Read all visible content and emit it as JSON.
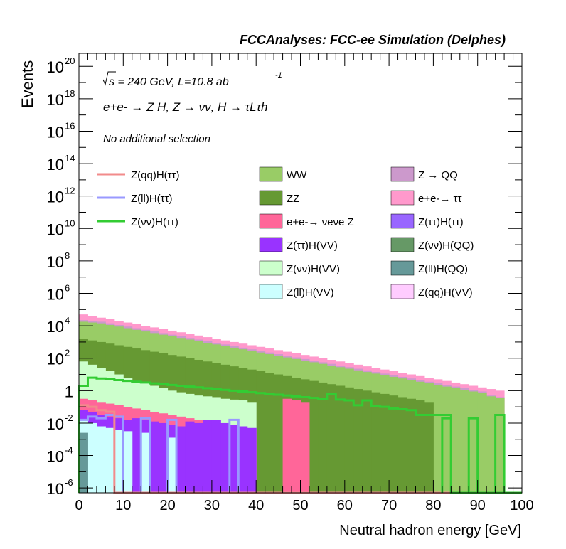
{
  "chart_data": {
    "type": "area",
    "title": "FCCAnalyses: FCC-ee Simulation (Delphes)",
    "xlabel": "Neutral hadron energy [GeV]",
    "ylabel": "Events",
    "xlim": [
      0,
      100
    ],
    "ylim_log10": [
      -6.3,
      20.8
    ],
    "y_scale": "log",
    "x_ticks": [
      "0",
      "10",
      "20",
      "30",
      "40",
      "50",
      "60",
      "70",
      "80",
      "90",
      "100"
    ],
    "y_ticks": [
      {
        "base": "10",
        "exp": "20",
        "v": 20
      },
      {
        "base": "10",
        "exp": "18",
        "v": 18
      },
      {
        "base": "10",
        "exp": "16",
        "v": 16
      },
      {
        "base": "10",
        "exp": "14",
        "v": 14
      },
      {
        "base": "10",
        "exp": "12",
        "v": 12
      },
      {
        "base": "10",
        "exp": "10",
        "v": 10
      },
      {
        "base": "10",
        "exp": "8",
        "v": 8
      },
      {
        "base": "10",
        "exp": "6",
        "v": 6
      },
      {
        "base": "10",
        "exp": "4",
        "v": 4
      },
      {
        "base": "10",
        "exp": "2",
        "v": 2
      },
      {
        "base": "1",
        "exp": "",
        "v": 0
      },
      {
        "base": "10",
        "exp": "-2",
        "v": -2
      },
      {
        "base": "10",
        "exp": "-4",
        "v": -4
      },
      {
        "base": "10",
        "exp": "-6",
        "v": -6
      }
    ],
    "annotations": {
      "energy": "s = 240 GeV, L=10.8 ab",
      "lumi_exp": "-1",
      "process": "e+e- → Z H, Z → νν, H → τLτh",
      "selection": "No additional selection"
    },
    "x_edges": [
      0,
      2,
      4,
      6,
      8,
      10,
      12,
      14,
      16,
      18,
      20,
      22,
      24,
      26,
      28,
      30,
      32,
      34,
      36,
      38,
      40,
      42,
      44,
      46,
      48,
      50,
      52,
      54,
      56,
      58,
      60,
      62,
      64,
      66,
      68,
      70,
      72,
      74,
      76,
      78,
      80,
      82,
      84,
      86,
      88,
      90,
      92,
      94,
      96,
      98,
      100
    ],
    "stack_top_log10": {
      "ee_tautau": [
        4.7,
        4.6,
        4.5,
        4.4,
        4.3,
        4.2,
        4.1,
        4.0,
        3.9,
        3.8,
        3.7,
        3.6,
        3.5,
        3.4,
        3.3,
        3.2,
        3.1,
        3.0,
        2.9,
        2.8,
        2.7,
        2.6,
        2.5,
        2.4,
        2.3,
        2.2,
        2.1,
        2.0,
        1.9,
        1.8,
        1.7,
        1.6,
        1.5,
        1.4,
        1.3,
        1.2,
        1.1,
        1.0,
        0.9,
        0.8,
        0.7,
        0.6,
        0.5,
        0.4,
        0.3,
        0.2,
        0.1,
        0.0,
        -6.3,
        -6.3
      ],
      "Z_QQ": [
        4.35,
        4.3,
        4.25,
        4.15,
        4.05,
        3.95,
        3.85,
        3.75,
        3.65,
        3.55,
        3.45,
        3.35,
        3.25,
        3.15,
        3.05,
        2.95,
        2.85,
        2.75,
        2.65,
        2.55,
        2.45,
        2.35,
        2.25,
        2.15,
        2.05,
        1.95,
        1.85,
        1.75,
        1.65,
        1.55,
        1.45,
        1.35,
        1.25,
        1.15,
        1.05,
        0.95,
        0.85,
        0.75,
        0.65,
        0.55,
        0.45,
        0.35,
        0.25,
        0.15,
        0.05,
        -0.05,
        -0.3,
        -0.4,
        -6.3,
        -6.3
      ],
      "WW": [
        4.25,
        4.2,
        4.15,
        4.05,
        3.95,
        3.85,
        3.75,
        3.65,
        3.55,
        3.45,
        3.35,
        3.25,
        3.15,
        3.05,
        2.95,
        2.85,
        2.75,
        2.65,
        2.55,
        2.45,
        2.35,
        2.25,
        2.15,
        2.05,
        1.95,
        1.85,
        1.75,
        1.65,
        1.55,
        1.45,
        1.35,
        1.25,
        1.15,
        1.05,
        0.95,
        0.85,
        0.75,
        0.65,
        0.55,
        0.45,
        0.35,
        0.25,
        0.15,
        0.05,
        -0.05,
        -0.15,
        -0.35,
        -0.45,
        -6.3,
        -6.3
      ],
      "ZZ": [
        3.2,
        3.1,
        3.0,
        2.9,
        2.8,
        2.7,
        2.6,
        2.5,
        2.4,
        2.3,
        2.2,
        2.1,
        2.0,
        1.9,
        1.8,
        1.7,
        1.6,
        1.5,
        1.4,
        1.3,
        1.2,
        1.1,
        1.0,
        0.9,
        0.8,
        0.7,
        0.6,
        0.5,
        0.4,
        0.3,
        0.2,
        0.1,
        0.0,
        -0.1,
        -0.2,
        -0.3,
        -0.4,
        -0.5,
        -0.6,
        -0.7,
        -6.3,
        -6.3,
        -6.3,
        -6.3,
        -6.3,
        -6.3,
        -6.3,
        -6.3,
        -6.3,
        -6.3
      ],
      "Z_vv_H_VV": [
        1.8,
        1.6,
        1.4,
        1.2,
        1.0,
        0.8,
        0.6,
        0.45,
        0.3,
        0.15,
        0.0,
        -0.1,
        -0.2,
        -0.3,
        -0.35,
        -0.4,
        -0.5,
        -0.55,
        -0.6,
        -0.7,
        -6.3,
        -6.3,
        -6.3,
        -6.3,
        -6.3,
        -6.3,
        -6.3,
        -6.3,
        -6.3,
        -6.3,
        -6.3,
        -6.3,
        -6.3,
        -6.3,
        -6.3,
        -6.3,
        -6.3,
        -6.3,
        -6.3,
        -6.3,
        -6.3,
        -6.3,
        -6.3,
        -6.3,
        -6.3,
        -6.3,
        -6.3,
        -6.3,
        -6.3,
        -6.3
      ],
      "ee_vv_Z": [
        -0.5,
        -0.6,
        -0.7,
        -0.8,
        -0.9,
        -1.0,
        -1.1,
        -1.2,
        -1.3,
        -1.4,
        -1.5,
        -1.6,
        -1.7,
        -1.8,
        -1.9,
        -2.0,
        -2.1,
        -2.2,
        -2.3,
        -2.4,
        -6.3,
        -6.3,
        -6.3,
        -0.5,
        -0.6,
        -0.7,
        -6.3,
        -6.3,
        -6.3,
        -6.3,
        -6.3,
        -6.3,
        -6.3,
        -6.3,
        -6.3,
        -6.3,
        -6.3,
        -6.3,
        -6.3,
        -6.3,
        -6.3,
        -6.3,
        -6.3,
        -6.3,
        -6.3,
        -6.3,
        -6.3,
        -6.3,
        -6.3,
        -6.3
      ],
      "Z_tautau_H_VV": [
        -1.2,
        -1.3,
        -1.5,
        -1.6,
        -1.7,
        -1.8,
        -1.7,
        -1.8,
        -1.9,
        -2.0,
        -2.1,
        -2.2,
        -1.9,
        -2.0,
        -1.8,
        -1.8,
        -2.0,
        -2.1,
        -2.2,
        -2.3,
        -6.3,
        -6.3,
        -6.3,
        -6.3,
        -6.3,
        -6.3,
        -6.3,
        -6.3,
        -6.3,
        -6.3,
        -6.3,
        -6.3,
        -6.3,
        -6.3,
        -6.3,
        -6.3,
        -6.3,
        -6.3,
        -6.3,
        -6.3,
        -6.3,
        -6.3,
        -6.3,
        -6.3,
        -6.3,
        -6.3,
        -6.3,
        -6.3,
        -6.3,
        -6.3
      ],
      "Z_ll_H_VV": [
        -1.8,
        -2.0,
        -2.2,
        -2.3,
        -2.4,
        -2.5,
        -6.3,
        -2.6,
        -6.3,
        -6.3,
        -2.9,
        -6.3,
        -6.3,
        -6.3,
        -6.3,
        -6.3,
        -6.3,
        -6.3,
        -6.3,
        -6.3,
        -6.3,
        -6.3,
        -6.3,
        -6.3,
        -6.3,
        -6.3,
        -6.3,
        -6.3,
        -6.3,
        -6.3,
        -6.3,
        -6.3,
        -6.3,
        -6.3,
        -6.3,
        -6.3,
        -6.3,
        -6.3,
        -6.3,
        -6.3,
        -6.3,
        -6.3,
        -6.3,
        -6.3,
        -6.3,
        -6.3,
        -6.3,
        -6.3,
        -6.3,
        -6.3
      ],
      "Z_ll_H_QQ": [
        -2.6,
        -6.3,
        -6.3,
        -6.3,
        -6.3,
        -6.3,
        -6.3,
        -6.3,
        -6.3,
        -6.3,
        -6.3,
        -6.3,
        -6.3,
        -6.3,
        -6.3,
        -6.3,
        -6.3,
        -6.3,
        -6.3,
        -6.3,
        -6.3,
        -6.3,
        -6.3,
        -6.3,
        -6.3,
        -6.3,
        -6.3,
        -6.3,
        -6.3,
        -6.3,
        -6.3,
        -6.3,
        -6.3,
        -6.3,
        -6.3,
        -6.3,
        -6.3,
        -6.3,
        -6.3,
        -6.3,
        -6.3,
        -6.3,
        -6.3,
        -6.3,
        -6.3,
        -6.3,
        -6.3,
        -6.3,
        -6.3,
        -6.3
      ]
    },
    "lines_log10": {
      "Z_vv_H_tautau": [
        0.3,
        0.8,
        0.75,
        0.7,
        0.65,
        0.6,
        0.55,
        0.5,
        0.45,
        0.4,
        0.35,
        0.3,
        0.25,
        0.2,
        0.15,
        0.1,
        0.05,
        0.0,
        -0.05,
        -0.1,
        -0.15,
        -0.2,
        -0.25,
        -0.3,
        -0.35,
        -0.4,
        -0.45,
        -0.5,
        -0.2,
        -0.55,
        -0.6,
        -0.9,
        -0.6,
        -0.95,
        -1.0,
        -1.1,
        -1.15,
        -1.2,
        -1.5,
        -1.5,
        -1.5,
        -1.5,
        -6.3,
        -6.3,
        -6.3,
        -6.3,
        -6.3,
        -6.3,
        -6.3,
        -6.3
      ],
      "Z_vv_H_tautau_tail": [
        [
          80,
          82,
          -6.3
        ],
        [
          82,
          84,
          -1.7
        ],
        [
          84,
          88,
          -6.3
        ],
        [
          88,
          90,
          -1.7
        ],
        [
          90,
          96,
          -6.3
        ],
        [
          94,
          96,
          -1.5
        ]
      ],
      "Z_qq_H_tautau": [
        -0.9,
        -1.0,
        -1.2,
        -1.3,
        -6.3,
        -6.3,
        -6.3,
        -6.3,
        -6.3,
        -6.3,
        -6.3,
        -6.3,
        -6.3,
        -6.3,
        -6.3,
        -6.3,
        -6.3,
        -6.3,
        -6.3,
        -6.3,
        -6.3,
        -6.3,
        -6.3,
        -6.3,
        -6.3,
        -6.3,
        -6.3,
        -6.3,
        -6.3,
        -6.3,
        -6.3,
        -6.3,
        -6.3,
        -6.3,
        -6.3,
        -6.3,
        -6.3,
        -6.3,
        -6.3,
        -6.3,
        -6.3,
        -6.3,
        -6.3,
        -6.3,
        -6.3,
        -6.3,
        -6.3,
        -6.3,
        -6.3,
        -6.3
      ],
      "Z_ll_H_tautau": [
        -1.8,
        -1.6,
        -1.7,
        -1.5,
        -1.6,
        -6.3,
        -6.3,
        -1.7,
        -6.3,
        -6.3,
        -1.8,
        -6.3,
        -6.3,
        -6.3,
        -6.3,
        -6.3,
        -6.3,
        -1.8,
        -6.3,
        -6.3,
        -6.3,
        -6.3,
        -6.3,
        -6.3,
        -6.3,
        -6.3,
        -6.3,
        -6.3,
        -6.3,
        -6.3,
        -6.3,
        -6.3,
        -6.3,
        -6.3,
        -6.3,
        -6.3,
        -6.3,
        -6.3,
        -6.3,
        -6.3,
        -6.3,
        -6.3,
        -6.3,
        -6.3,
        -6.3,
        -6.3,
        -6.3,
        -6.3,
        -6.3,
        -6.3
      ]
    },
    "legend_lines": [
      {
        "key": "Z_qq_H_tautau",
        "label": "Z(qq)H(ττ)",
        "color": "#f28b8b"
      },
      {
        "key": "Z_ll_H_tautau",
        "label": "Z(ll)H(ττ)",
        "color": "#9999ff"
      },
      {
        "key": "Z_vv_H_tautau",
        "label": "Z(νν)H(ττ)",
        "color": "#33cc33"
      }
    ],
    "legend_fills": [
      {
        "key": "WW",
        "label": "WW",
        "color": "#99cc66"
      },
      {
        "key": "ZZ",
        "label": "ZZ",
        "color": "#669933"
      },
      {
        "key": "ee_vv_Z",
        "label": "e+e-→ νeνe Z",
        "color": "#ff6699"
      },
      {
        "key": "Z_tautau_H_VV",
        "label": "Z(ττ)H(VV)",
        "color": "#9933ff"
      },
      {
        "key": "Z_vv_H_VV",
        "label": "Z(νν)H(VV)",
        "color": "#ccffcc"
      },
      {
        "key": "Z_ll_H_VV",
        "label": "Z(ll)H(VV)",
        "color": "#ccffff"
      },
      {
        "key": "Z_QQ",
        "label": "Z → QQ",
        "color": "#cc99cc"
      },
      {
        "key": "ee_tautau",
        "label": "e+e-→ ττ",
        "color": "#ff99cc"
      },
      {
        "key": "Z_tautau_H_tautau",
        "label": "Z(ττ)H(ττ)",
        "color": "#9966ff"
      },
      {
        "key": "Z_vv_H_QQ",
        "label": "Z(νν)H(QQ)",
        "color": "#669966"
      },
      {
        "key": "Z_ll_H_QQ",
        "label": "Z(ll)H(QQ)",
        "color": "#669999"
      },
      {
        "key": "Z_qq_H_VV",
        "label": "Z(qq)H(VV)",
        "color": "#ffccff"
      }
    ]
  }
}
